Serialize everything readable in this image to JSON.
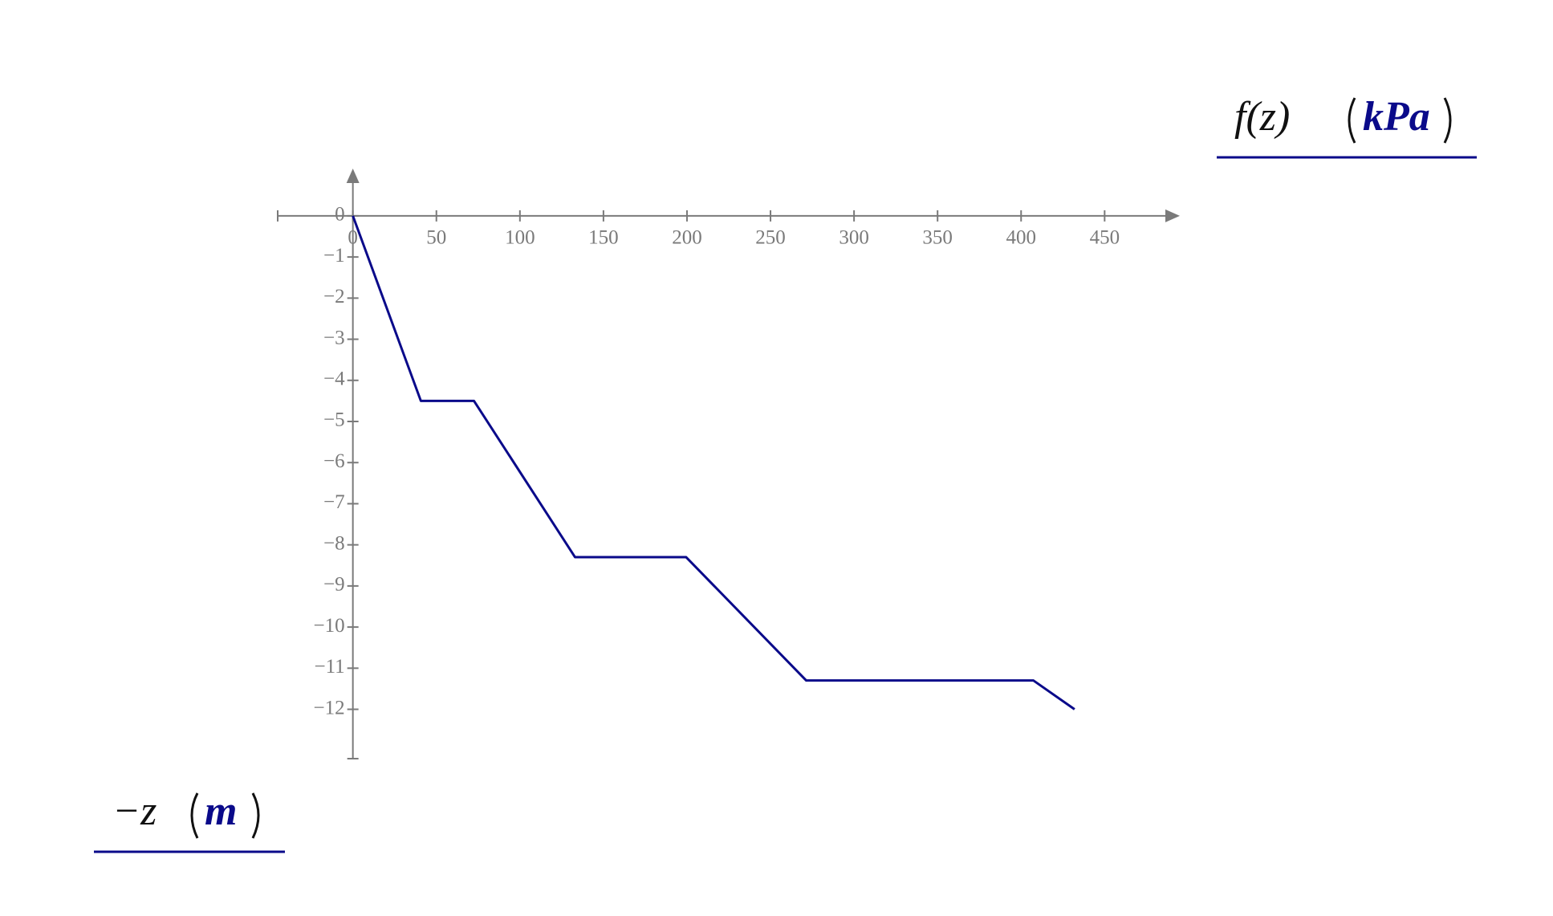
{
  "chart_data": {
    "type": "line",
    "x_label": "f(z)",
    "x_unit": "kPa",
    "y_label": "−z",
    "y_unit": "m",
    "xlim": [
      -45,
      495
    ],
    "ylim": [
      -13.2,
      1.15
    ],
    "xticks": [
      0,
      50,
      100,
      150,
      200,
      250,
      300,
      350,
      400,
      450
    ],
    "yticks": [
      0,
      {
        "value": -1,
        "label": "−1"
      },
      {
        "value": -2,
        "label": "−2"
      },
      {
        "value": -3,
        "label": "−3"
      },
      {
        "value": -4,
        "label": "−4"
      },
      {
        "value": -5,
        "label": "−5"
      },
      {
        "value": -6,
        "label": "−6"
      },
      {
        "value": -7,
        "label": "−7"
      },
      {
        "value": -8,
        "label": "−8"
      },
      {
        "value": -9,
        "label": "−9"
      },
      {
        "value": -10,
        "label": "−10"
      },
      {
        "value": -11,
        "label": "−11"
      },
      {
        "value": -12,
        "label": "−12"
      }
    ],
    "series": [
      {
        "color": "#0a0a8a",
        "x": [
          0,
          40.7,
          72.5,
          133,
          199.5,
          271.4,
          407.4,
          432
        ],
        "values": [
          0,
          -4.5,
          -4.5,
          -8.3,
          -8.3,
          -11.3,
          -11.3,
          -12
        ]
      }
    ]
  }
}
